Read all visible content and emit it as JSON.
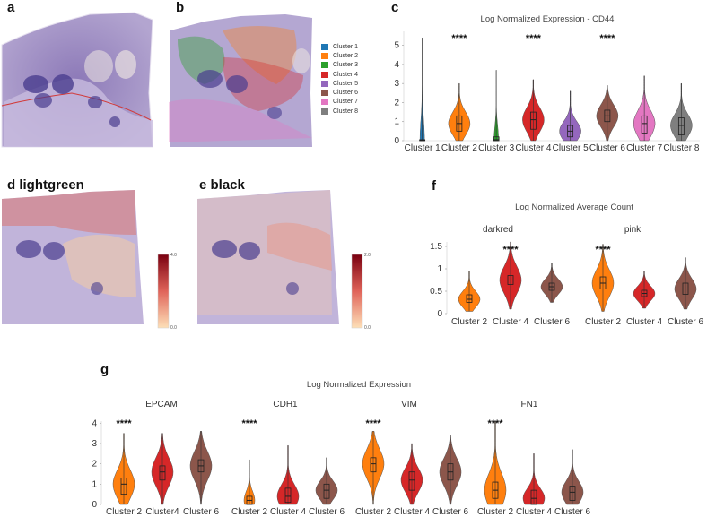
{
  "panels": {
    "a": {
      "label": "a"
    },
    "b": {
      "label": "b"
    },
    "c": {
      "label": "c",
      "title": "Log Normalized Expression - CD44"
    },
    "d": {
      "label": "d lightgreen",
      "colorbar": {
        "max": "4.0",
        "min": "0.0"
      }
    },
    "e": {
      "label": "e black",
      "colorbar": {
        "max": "2.0",
        "min": "0.0"
      }
    },
    "f": {
      "label": "f",
      "title": "Log Normalized Average Count",
      "groups": [
        "darkred",
        "pink"
      ]
    },
    "g": {
      "label": "g",
      "title": "Log Normalized Expression",
      "groups": [
        "EPCAM",
        "CDH1",
        "VIM",
        "FN1"
      ]
    }
  },
  "legend": [
    {
      "name": "Cluster 1",
      "color": "#1f77b4"
    },
    {
      "name": "Cluster 2",
      "color": "#ff7f0e"
    },
    {
      "name": "Cluster 3",
      "color": "#2ca02c"
    },
    {
      "name": "Cluster 4",
      "color": "#d62728"
    },
    {
      "name": "Cluster 5",
      "color": "#9467bd"
    },
    {
      "name": "Cluster 6",
      "color": "#8c564b"
    },
    {
      "name": "Cluster 7",
      "color": "#e377c2"
    },
    {
      "name": "Cluster 8",
      "color": "#7f7f7f"
    }
  ],
  "chart_data": [
    {
      "id": "c",
      "type": "violin",
      "title": "Log Normalized Expression - CD44",
      "categories": [
        "Cluster 1",
        "Cluster 2",
        "Cluster 3",
        "Cluster 4",
        "Cluster 5",
        "Cluster 6",
        "Cluster 7",
        "Cluster 8"
      ],
      "colors": [
        "#1f77b4",
        "#ff7f0e",
        "#2ca02c",
        "#d62728",
        "#9467bd",
        "#8c564b",
        "#e377c2",
        "#7f7f7f"
      ],
      "medians": [
        0.02,
        0.9,
        0.05,
        1.1,
        0.5,
        1.3,
        0.9,
        0.8
      ],
      "q1": [
        0.0,
        0.5,
        0.0,
        0.6,
        0.2,
        1.0,
        0.4,
        0.3
      ],
      "q3": [
        0.05,
        1.3,
        0.2,
        1.5,
        0.8,
        1.6,
        1.3,
        1.2
      ],
      "min": [
        0,
        0,
        0,
        0,
        0,
        0,
        0,
        0
      ],
      "max": [
        5.4,
        3.0,
        3.7,
        3.2,
        2.6,
        2.9,
        3.4,
        3.0
      ],
      "significance": [
        "",
        "****",
        "",
        "****",
        "",
        "****",
        "",
        ""
      ],
      "ylim": [
        0,
        5.5
      ],
      "yticks": [
        "0",
        "1",
        "2",
        "3",
        "4",
        "5"
      ]
    },
    {
      "id": "f",
      "type": "violin",
      "title": "Log Normalized Average Count",
      "groups": [
        {
          "name": "darkred",
          "categories": [
            "Cluster 2",
            "Cluster 4",
            "Cluster 6"
          ],
          "medians": [
            0.32,
            0.75,
            0.6
          ],
          "q1": [
            0.25,
            0.65,
            0.52
          ],
          "q3": [
            0.42,
            0.85,
            0.68
          ],
          "min": [
            0.05,
            0.1,
            0.25
          ],
          "max": [
            0.95,
            1.6,
            1.12
          ],
          "significance": [
            "",
            "****",
            ""
          ]
        },
        {
          "name": "pink",
          "categories": [
            "Cluster 2",
            "Cluster 4",
            "Cluster 6"
          ],
          "medians": [
            0.68,
            0.45,
            0.55
          ],
          "q1": [
            0.55,
            0.38,
            0.43
          ],
          "q3": [
            0.82,
            0.52,
            0.68
          ],
          "min": [
            0.05,
            0.12,
            0.1
          ],
          "max": [
            1.55,
            0.95,
            1.25
          ],
          "significance": [
            "****",
            "",
            ""
          ]
        }
      ],
      "colors": [
        "#ff7f0e",
        "#d62728",
        "#8c564b"
      ],
      "ylim": [
        0,
        1.6
      ],
      "yticks": [
        "0",
        "0.5",
        "1",
        "1.5"
      ]
    },
    {
      "id": "g",
      "type": "violin",
      "title": "Log Normalized Expression",
      "groups": [
        {
          "name": "EPCAM",
          "categories": [
            "Cluster 2",
            "Cluster4",
            "Cluster 6"
          ],
          "medians": [
            1.0,
            1.6,
            1.9
          ],
          "q1": [
            0.5,
            1.2,
            1.6
          ],
          "q3": [
            1.3,
            1.9,
            2.2
          ],
          "min": [
            0,
            0,
            0
          ],
          "max": [
            3.5,
            3.5,
            3.6
          ],
          "significance": [
            "****",
            "",
            ""
          ]
        },
        {
          "name": "CDH1",
          "categories": [
            "Cluster 2",
            "Cluster 4",
            "Cluster 6"
          ],
          "medians": [
            0.2,
            0.4,
            0.7
          ],
          "q1": [
            0.0,
            0.1,
            0.3
          ],
          "q3": [
            0.4,
            0.8,
            1.0
          ],
          "min": [
            0,
            0,
            0
          ],
          "max": [
            2.2,
            2.9,
            2.3
          ],
          "significance": [
            "****",
            "",
            ""
          ]
        },
        {
          "name": "VIM",
          "categories": [
            "Cluster 2",
            "Cluster 4",
            "Cluster 6"
          ],
          "medians": [
            2.0,
            1.2,
            1.6
          ],
          "q1": [
            1.6,
            0.7,
            1.2
          ],
          "q3": [
            2.3,
            1.6,
            2.0
          ],
          "min": [
            0,
            0,
            0
          ],
          "max": [
            3.6,
            3.0,
            3.4
          ],
          "significance": [
            "****",
            "",
            ""
          ]
        },
        {
          "name": "FN1",
          "categories": [
            "Cluster 2",
            "Cluster 4",
            "Cluster 6"
          ],
          "medians": [
            0.7,
            0.3,
            0.6
          ],
          "q1": [
            0.3,
            0.0,
            0.2
          ],
          "q3": [
            1.1,
            0.7,
            0.9
          ],
          "min": [
            0,
            0,
            0
          ],
          "max": [
            4.1,
            2.5,
            2.7
          ],
          "significance": [
            "****",
            "",
            ""
          ]
        }
      ],
      "colors": [
        "#ff7f0e",
        "#d62728",
        "#8c564b"
      ],
      "ylim": [
        0,
        4.1
      ],
      "yticks": [
        "0",
        "1",
        "2",
        "3",
        "4"
      ]
    }
  ]
}
